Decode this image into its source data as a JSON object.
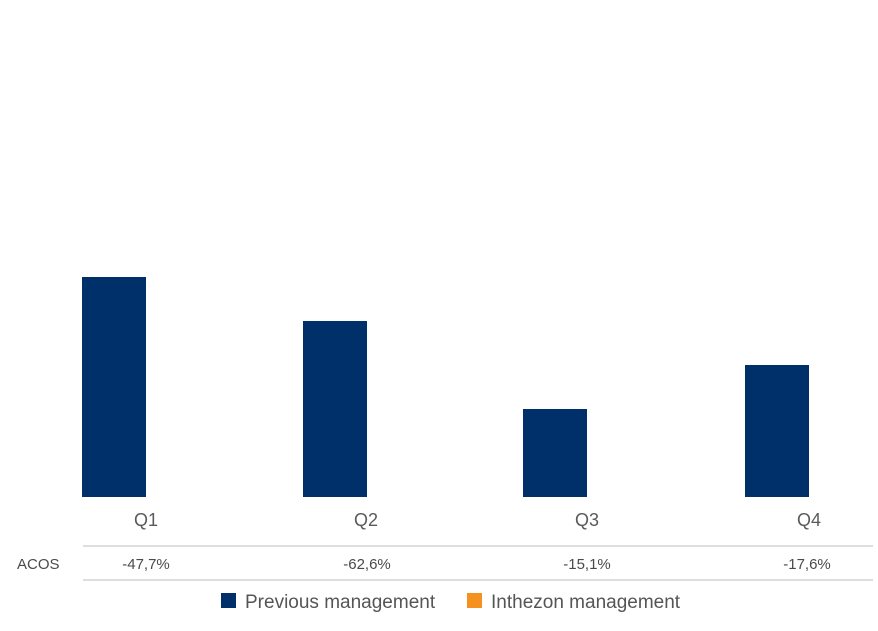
{
  "chart_data": {
    "type": "bar",
    "categories": [
      "Q1",
      "Q2",
      "Q3",
      "Q4"
    ],
    "series": [
      {
        "name": "Previous management",
        "color": "#003069",
        "values": [
          100,
          80,
          40,
          60
        ]
      },
      {
        "name": "Inthezon management",
        "color": "#f5911e",
        "values": [
          null,
          null,
          null,
          null
        ]
      }
    ],
    "ylim": [
      0,
      100
    ],
    "grid": false,
    "legend_position": "bottom",
    "table": {
      "row_label": "ACOS",
      "values": [
        "-47,7%",
        "-62,6%",
        "-15,1%",
        "-17,6%"
      ]
    }
  }
}
